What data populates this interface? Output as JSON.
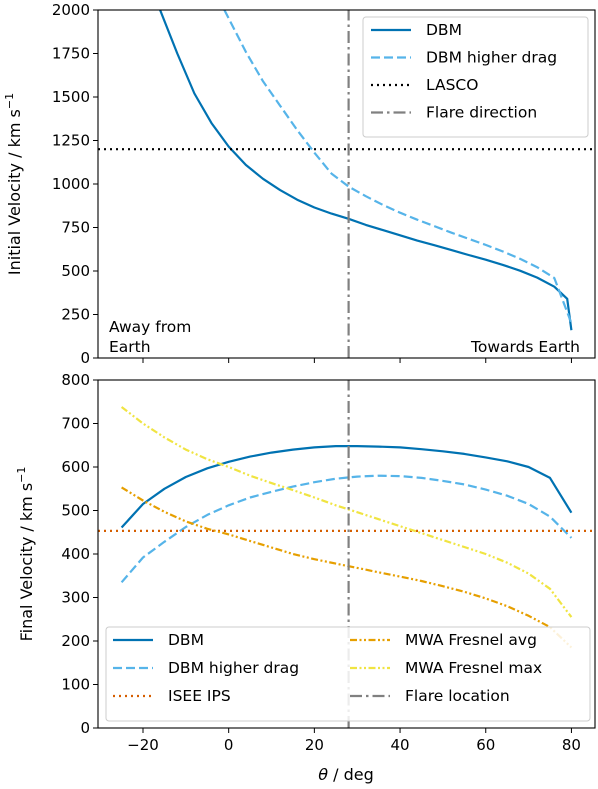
{
  "figure": {
    "x_label": "θ / deg",
    "x_label_theta": "θ",
    "x_label_rest": " / deg",
    "x_ticks": [
      -20,
      0,
      20,
      40,
      60,
      80
    ],
    "x_range": [
      -30.5,
      85.5
    ]
  },
  "chart_data": [
    {
      "type": "line",
      "panel": "top",
      "ylabel": "Initial Velocity / km s^-1",
      "ylabel_main": "Initial Velocity / km s",
      "ylabel_sup": "−1",
      "ylim": [
        0,
        2000
      ],
      "yticks": [
        0,
        250,
        500,
        750,
        1000,
        1250,
        1500,
        1750,
        2000
      ],
      "grid": false,
      "legend_position": "top-right",
      "annotations": {
        "left": [
          "Away from",
          "Earth"
        ],
        "right": "Towards Earth"
      },
      "series": [
        {
          "name": "DBM",
          "style": "solid",
          "color": "#0072b2",
          "points": [
            [
              -16,
              2000
            ],
            [
              -12,
              1750
            ],
            [
              -8,
              1520
            ],
            [
              -4,
              1350
            ],
            [
              0,
              1215
            ],
            [
              4,
              1110
            ],
            [
              8,
              1030
            ],
            [
              12,
              965
            ],
            [
              16,
              910
            ],
            [
              20,
              865
            ],
            [
              24,
              830
            ],
            [
              28,
              800
            ],
            [
              32,
              765
            ],
            [
              36,
              735
            ],
            [
              40,
              705
            ],
            [
              44,
              675
            ],
            [
              48,
              648
            ],
            [
              52,
              620
            ],
            [
              56,
              592
            ],
            [
              60,
              565
            ],
            [
              64,
              535
            ],
            [
              68,
              502
            ],
            [
              72,
              462
            ],
            [
              76,
              410
            ],
            [
              79,
              340
            ],
            [
              80,
              160
            ]
          ]
        },
        {
          "name": "DBM higher drag",
          "style": "dashed",
          "color": "#56b4e9",
          "points": [
            [
              -1,
              2000
            ],
            [
              4,
              1760
            ],
            [
              8,
              1590
            ],
            [
              12,
              1450
            ],
            [
              16,
              1310
            ],
            [
              20,
              1180
            ],
            [
              24,
              1060
            ],
            [
              28,
              985
            ],
            [
              32,
              930
            ],
            [
              36,
              880
            ],
            [
              40,
              835
            ],
            [
              44,
              795
            ],
            [
              48,
              758
            ],
            [
              52,
              720
            ],
            [
              56,
              685
            ],
            [
              60,
              650
            ],
            [
              64,
              612
            ],
            [
              68,
              570
            ],
            [
              72,
              522
            ],
            [
              76,
              460
            ],
            [
              80,
              200
            ]
          ]
        },
        {
          "name": "LASCO",
          "style": "dotted",
          "color": "#000000",
          "points": [
            [
              -30.5,
              1200
            ],
            [
              85.5,
              1200
            ]
          ]
        },
        {
          "name": "Flare direction",
          "style": "dashdot",
          "color": "#808080",
          "points": [
            [
              28,
              0
            ],
            [
              28,
              2000
            ]
          ]
        }
      ]
    },
    {
      "type": "line",
      "panel": "bottom",
      "ylabel": "Final Velocity / km s^-1",
      "ylabel_main": "Final Velocity / km s",
      "ylabel_sup": "−1",
      "ylim": [
        0,
        800
      ],
      "yticks": [
        0,
        100,
        200,
        300,
        400,
        500,
        600,
        700,
        800
      ],
      "grid": false,
      "legend_position": "lower",
      "legend_columns": 2,
      "series": [
        {
          "name": "DBM",
          "style": "solid",
          "color": "#0072b2",
          "points": [
            [
              -25,
              461
            ],
            [
              -20,
              515
            ],
            [
              -15,
              550
            ],
            [
              -10,
              577
            ],
            [
              -5,
              597
            ],
            [
              0,
              612
            ],
            [
              5,
              624
            ],
            [
              10,
              633
            ],
            [
              15,
              640
            ],
            [
              20,
              645
            ],
            [
              25,
              648
            ],
            [
              30,
              648
            ],
            [
              35,
              647
            ],
            [
              40,
              645
            ],
            [
              45,
              641
            ],
            [
              50,
              636
            ],
            [
              55,
              630
            ],
            [
              60,
              622
            ],
            [
              65,
              613
            ],
            [
              70,
              600
            ],
            [
              75,
              575
            ],
            [
              80,
              495
            ]
          ]
        },
        {
          "name": "DBM higher drag",
          "style": "dashed",
          "color": "#56b4e9",
          "points": [
            [
              -25,
              335
            ],
            [
              -20,
              392
            ],
            [
              -15,
              428
            ],
            [
              -10,
              462
            ],
            [
              -5,
              490
            ],
            [
              0,
              512
            ],
            [
              5,
              530
            ],
            [
              10,
              543
            ],
            [
              15,
              555
            ],
            [
              20,
              565
            ],
            [
              25,
              573
            ],
            [
              30,
              578
            ],
            [
              35,
              580
            ],
            [
              40,
              579
            ],
            [
              45,
              575
            ],
            [
              50,
              568
            ],
            [
              55,
              560
            ],
            [
              60,
              548
            ],
            [
              65,
              534
            ],
            [
              70,
              515
            ],
            [
              75,
              486
            ],
            [
              80,
              437
            ]
          ]
        },
        {
          "name": "ISEE IPS",
          "style": "dotted",
          "color": "#d55e00",
          "points": [
            [
              -30.5,
              453
            ],
            [
              85.5,
              453
            ]
          ]
        },
        {
          "name": "MWA Fresnel avg",
          "style": "dashdotdot",
          "color": "#e69f00",
          "points": [
            [
              -25,
              553
            ],
            [
              -20,
              523
            ],
            [
              -15,
              497
            ],
            [
              -10,
              475
            ],
            [
              -5,
              458
            ],
            [
              0,
              445
            ],
            [
              5,
              430
            ],
            [
              10,
              415
            ],
            [
              15,
              400
            ],
            [
              20,
              388
            ],
            [
              25,
              378
            ],
            [
              30,
              368
            ],
            [
              35,
              358
            ],
            [
              40,
              348
            ],
            [
              45,
              338
            ],
            [
              50,
              326
            ],
            [
              55,
              313
            ],
            [
              60,
              298
            ],
            [
              65,
              280
            ],
            [
              70,
              258
            ],
            [
              75,
              232
            ],
            [
              80,
              185
            ]
          ]
        },
        {
          "name": "MWA Fresnel max",
          "style": "dashdotdot",
          "color": "#f0e442",
          "points": [
            [
              -25,
              738
            ],
            [
              -20,
              700
            ],
            [
              -15,
              668
            ],
            [
              -10,
              640
            ],
            [
              -5,
              618
            ],
            [
              0,
              600
            ],
            [
              5,
              580
            ],
            [
              10,
              563
            ],
            [
              15,
              547
            ],
            [
              20,
              530
            ],
            [
              25,
              512
            ],
            [
              30,
              496
            ],
            [
              35,
              480
            ],
            [
              40,
              464
            ],
            [
              45,
              448
            ],
            [
              50,
              432
            ],
            [
              55,
              416
            ],
            [
              60,
              400
            ],
            [
              65,
              380
            ],
            [
              70,
              355
            ],
            [
              75,
              320
            ],
            [
              80,
              255
            ]
          ]
        },
        {
          "name": "Flare location",
          "style": "dashdot",
          "color": "#808080",
          "points": [
            [
              28,
              0
            ],
            [
              28,
              800
            ]
          ]
        }
      ]
    }
  ]
}
